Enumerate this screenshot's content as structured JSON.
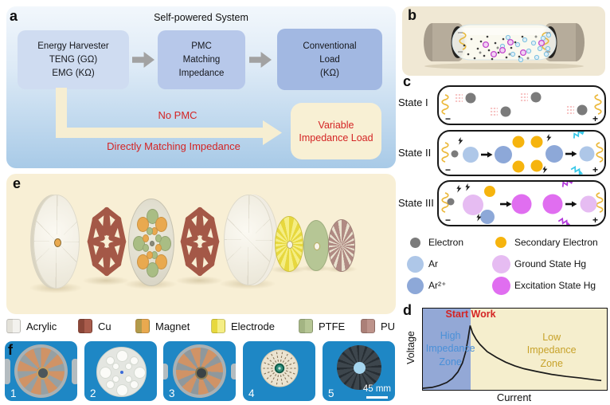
{
  "figure": {
    "panel_a": {
      "label": "a",
      "title": "Self-powered System",
      "box_harvester": [
        "Energy Harvester",
        "TENG (GΩ)",
        "EMG (KΩ)"
      ],
      "box_pmc": [
        "PMC",
        "Matching",
        "Impedance"
      ],
      "box_load": [
        "Conventional",
        "Load",
        "(KΩ)"
      ],
      "no_pmc_label": "No PMC",
      "direct_label": "Directly Matching Impedance",
      "variable_load": [
        "Variable",
        "Impedance Load"
      ],
      "colors": {
        "harvester_box": "#cfdcf1",
        "pmc_box": "#b7c8ea",
        "load_box": "#a2b8e2",
        "flow_arrow": "#a2a2a2",
        "bypass_arrow": "#f6eed2",
        "variable_box": "#f8f0d4",
        "red_text": "#d42424"
      }
    },
    "panel_b": {
      "label": "b"
    },
    "panel_c": {
      "label": "c",
      "states": [
        "State I",
        "State II",
        "State III"
      ],
      "minus": "−",
      "plus": "+",
      "legend_col1": [
        {
          "label": "Electron",
          "color": "#7b7b7b"
        },
        {
          "label": "Ar",
          "color": "#aec7e8"
        },
        {
          "label": "Ar²⁺",
          "color": "#8da8d8"
        }
      ],
      "legend_col2": [
        {
          "label": "Secondary Electron",
          "color": "#f6b40e"
        },
        {
          "label": "Ground State Hg",
          "color": "#e6bcf2"
        },
        {
          "label": "Excitation State Hg",
          "color": "#e06ef0"
        }
      ]
    },
    "panel_d": {
      "label": "d"
    },
    "panel_e": {
      "label": "e",
      "materials": [
        {
          "label": "Acrylic",
          "color": "#f3f2ee",
          "color2": "#e3e1d9"
        },
        {
          "label": "Cu",
          "color": "#a95c4c",
          "color2": "#8a4638"
        },
        {
          "label": "Magnet",
          "color": "#e9a94f",
          "color2": "#b19b4c"
        },
        {
          "label": "Electrode",
          "color": "#f5ee85",
          "color2": "#e7d83e"
        },
        {
          "label": "PTFE",
          "color": "#b6c695",
          "color2": "#a3b483"
        },
        {
          "label": "PU",
          "color": "#bd938b",
          "color2": "#ab8078"
        }
      ]
    },
    "panel_f": {
      "label": "f",
      "photo_numbers": [
        "1",
        "2",
        "3",
        "4",
        "5"
      ],
      "scale_bar": "45 mm"
    }
  },
  "chart_data": {
    "type": "line",
    "title": "",
    "xlabel": "Current",
    "ylabel": "Voltage",
    "xlim": [
      0,
      1
    ],
    "ylim": [
      0,
      1
    ],
    "grid": false,
    "legend_shown": false,
    "series": [
      {
        "name": "discharge voltage-current curve",
        "color": "#1a1a1a",
        "points": [
          [
            0,
            0.02
          ],
          [
            0.05,
            0.03
          ],
          [
            0.09,
            0.055
          ],
          [
            0.13,
            0.09
          ],
          [
            0.16,
            0.14
          ],
          [
            0.19,
            0.22
          ],
          [
            0.215,
            0.33
          ],
          [
            0.233,
            0.47
          ],
          [
            0.245,
            0.62
          ],
          [
            0.252,
            0.72
          ],
          [
            0.257,
            0.79
          ],
          [
            0.27,
            0.7
          ],
          [
            0.29,
            0.62
          ],
          [
            0.31,
            0.56
          ],
          [
            0.35,
            0.47
          ],
          [
            0.4,
            0.4
          ],
          [
            0.45,
            0.34
          ],
          [
            0.5,
            0.295
          ],
          [
            0.55,
            0.26
          ],
          [
            0.62,
            0.225
          ],
          [
            0.7,
            0.19
          ],
          [
            0.78,
            0.165
          ],
          [
            0.86,
            0.145
          ],
          [
            0.93,
            0.125
          ],
          [
            0.97,
            0.115
          ]
        ]
      }
    ],
    "zones": [
      {
        "label": "High\nImpedance\nZone",
        "x_range": [
          0,
          0.26
        ],
        "fill": "#93a8d6",
        "label_color": "#4a90d8"
      },
      {
        "label": "Low\nImpedance\nZone",
        "x_range": [
          0.26,
          1
        ],
        "fill": "#f5eecd",
        "label_color": "#c7a22a"
      }
    ],
    "annotations": [
      {
        "label": "Start Work",
        "x": 0.26,
        "y": 0.8,
        "color": "#d42424"
      }
    ]
  }
}
